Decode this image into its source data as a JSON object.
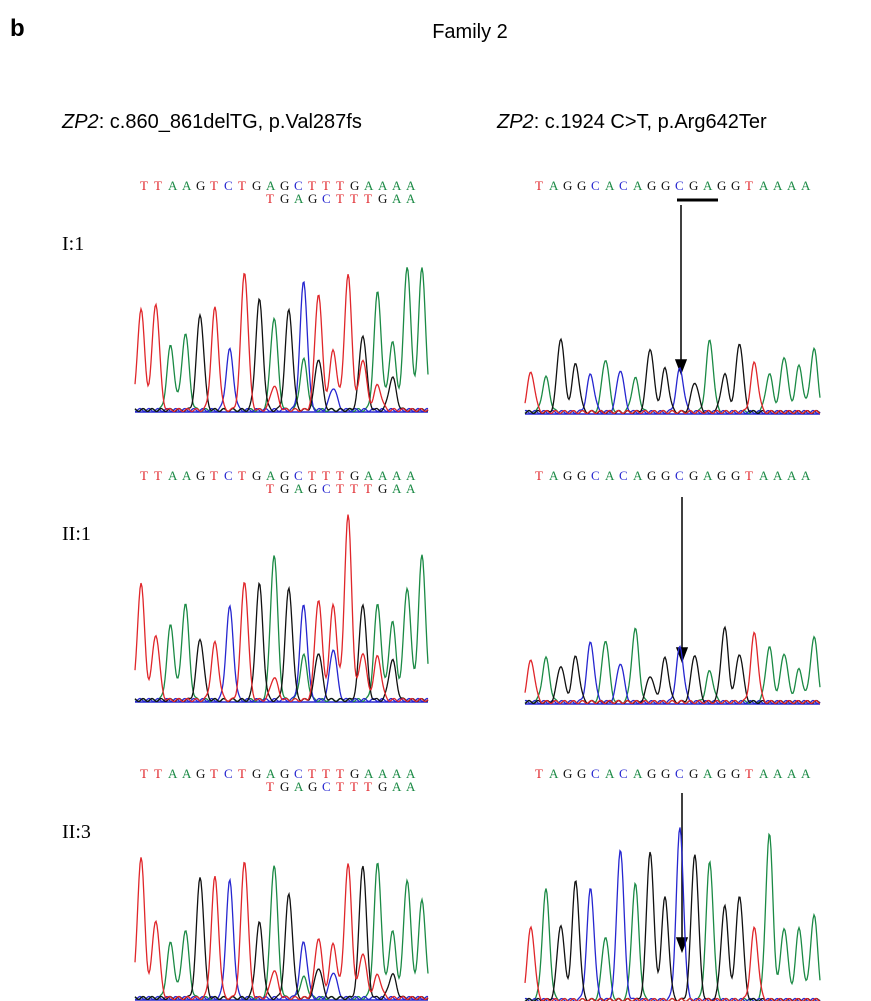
{
  "label": "b",
  "title": "Family 2",
  "headers": [
    {
      "gene": "ZP2",
      "variant": ": c.860_861delTG, p.Val287fs"
    },
    {
      "gene": "ZP2",
      "variant": ": c.1924 C>T, p.Arg642Ter"
    }
  ],
  "rows": [
    {
      "individual": "I:1",
      "left": {
        "reference": "TTAAGTCTGAGCTTTGAAAA",
        "shifted": "TGAGCTTTGAA"
      },
      "right": {
        "reference": "TAGGCACAGGCGAGGTAAAA"
      }
    },
    {
      "individual": "II:1",
      "left": {
        "reference": "TTAAGTCTGAGCTTTGAAAA",
        "shifted": "TGAGCTTTGAA"
      },
      "right": {
        "reference": "TAGGCACAGGCGAGGTAAAA"
      }
    },
    {
      "individual": "II:3",
      "left": {
        "reference": "TTAAGTCTGAGCTTTGAAAA",
        "shifted": "TGAGCTTTGAA"
      },
      "right": {
        "reference": "TAGGCACAGGCGAGGTAAAA"
      }
    }
  ]
}
